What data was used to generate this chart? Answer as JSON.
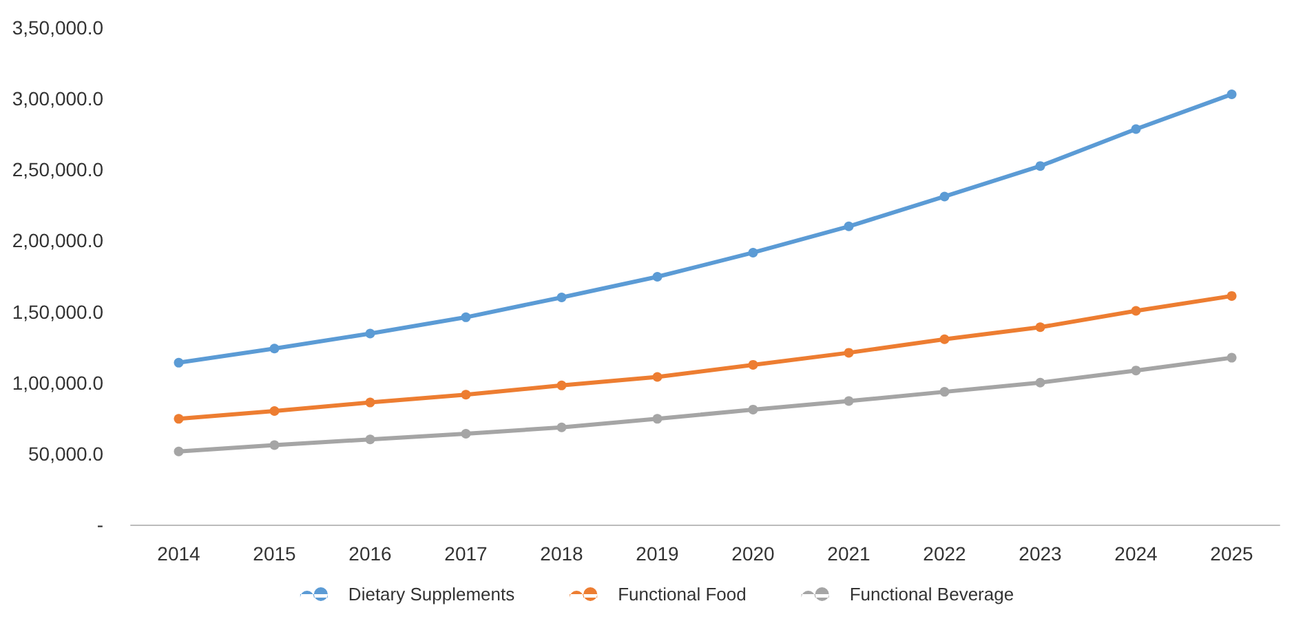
{
  "chart_data": {
    "type": "line",
    "categories": [
      "2014",
      "2015",
      "2016",
      "2017",
      "2018",
      "2019",
      "2020",
      "2021",
      "2022",
      "2023",
      "2024",
      "2025"
    ],
    "series": [
      {
        "name": "Dietary Supplements",
        "color": "#5b9bd5",
        "values": [
          114000,
          124000,
          134500,
          146000,
          160000,
          174500,
          191500,
          210000,
          231000,
          252500,
          278500,
          303000
        ]
      },
      {
        "name": "Functional Food",
        "color": "#ed7d31",
        "values": [
          74500,
          80000,
          86000,
          91500,
          98000,
          104000,
          112500,
          121000,
          130500,
          139000,
          150500,
          161000
        ]
      },
      {
        "name": "Functional Beverage",
        "color": "#a5a5a5",
        "values": [
          51500,
          56000,
          60000,
          64000,
          68500,
          74500,
          81000,
          87000,
          93500,
          100000,
          108500,
          117500
        ]
      }
    ],
    "ylim": [
      0,
      350000
    ],
    "yticks": [
      {
        "value": 0,
        "label": "-"
      },
      {
        "value": 50000,
        "label": "50,000.0"
      },
      {
        "value": 100000,
        "label": "1,00,000.0"
      },
      {
        "value": 150000,
        "label": "1,50,000.0"
      },
      {
        "value": 200000,
        "label": "2,00,000.0"
      },
      {
        "value": 250000,
        "label": "2,50,000.0"
      },
      {
        "value": 300000,
        "label": "3,00,000.0"
      },
      {
        "value": 350000,
        "label": "3,50,000.0"
      }
    ],
    "grid": false,
    "legend": "bottom",
    "marker": "circle",
    "line_style": "solid"
  }
}
